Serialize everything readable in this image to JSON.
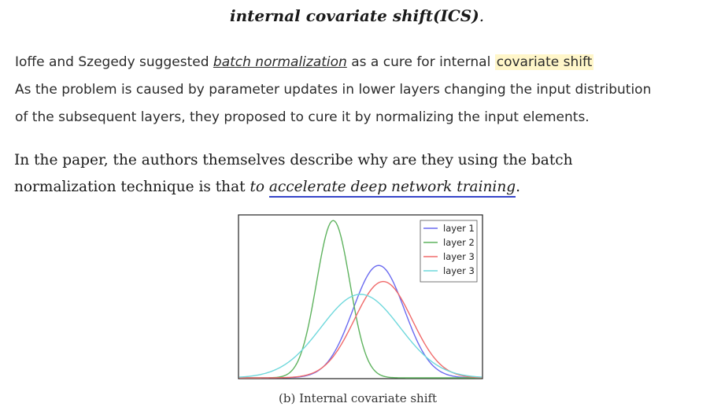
{
  "title": {
    "text": "internal covariate shift(ICS)",
    "trail": "."
  },
  "para1": {
    "line1_pre": "Ioffe and Szegedy suggested ",
    "line1_link": "batch normalization",
    "line1_mid": " as a cure for  internal ",
    "line1_highlight": "covariate shift",
    "line2": "As the problem is caused by  parameter updates in lower layers changing the input distribution",
    "line3": "of the subsequent layers, they proposed to cure it by normalizing  the input elements."
  },
  "para2": {
    "line1": "In the paper, the authors themselves describe why are they using the batch",
    "line2_pre": "normalization technique is that ",
    "line2_em": "to ",
    "line2_link": "accelerate deep network training",
    "line2_trail": "."
  },
  "figure": {
    "caption": "(b) Internal covariate shift",
    "colors": {
      "layer1": "#6b6bf0",
      "layer2": "#5fb35f",
      "layer3a": "#f06b6b",
      "layer3b": "#6fd8dc",
      "highlight": "#fff6c9",
      "underline": "#3545c9"
    },
    "chart_data": {
      "type": "line",
      "title": "",
      "xlabel": "",
      "ylabel": "",
      "grid": false,
      "legend_position": "top-right",
      "xlim": [
        -4,
        4
      ],
      "ylim": [
        0,
        1
      ],
      "series": [
        {
          "name": "layer 1",
          "color": "#6b6bf0",
          "mean": 0.6,
          "std": 0.85,
          "peak": 0.7
        },
        {
          "name": "layer 2",
          "color": "#5fb35f",
          "mean": -0.9,
          "std": 0.55,
          "peak": 0.98
        },
        {
          "name": "layer 3",
          "color": "#f06b6b",
          "mean": 0.75,
          "std": 0.95,
          "peak": 0.6
        },
        {
          "name": "layer 3",
          "color": "#6fd8dc",
          "mean": 0.0,
          "std": 1.3,
          "peak": 0.52
        }
      ]
    }
  }
}
